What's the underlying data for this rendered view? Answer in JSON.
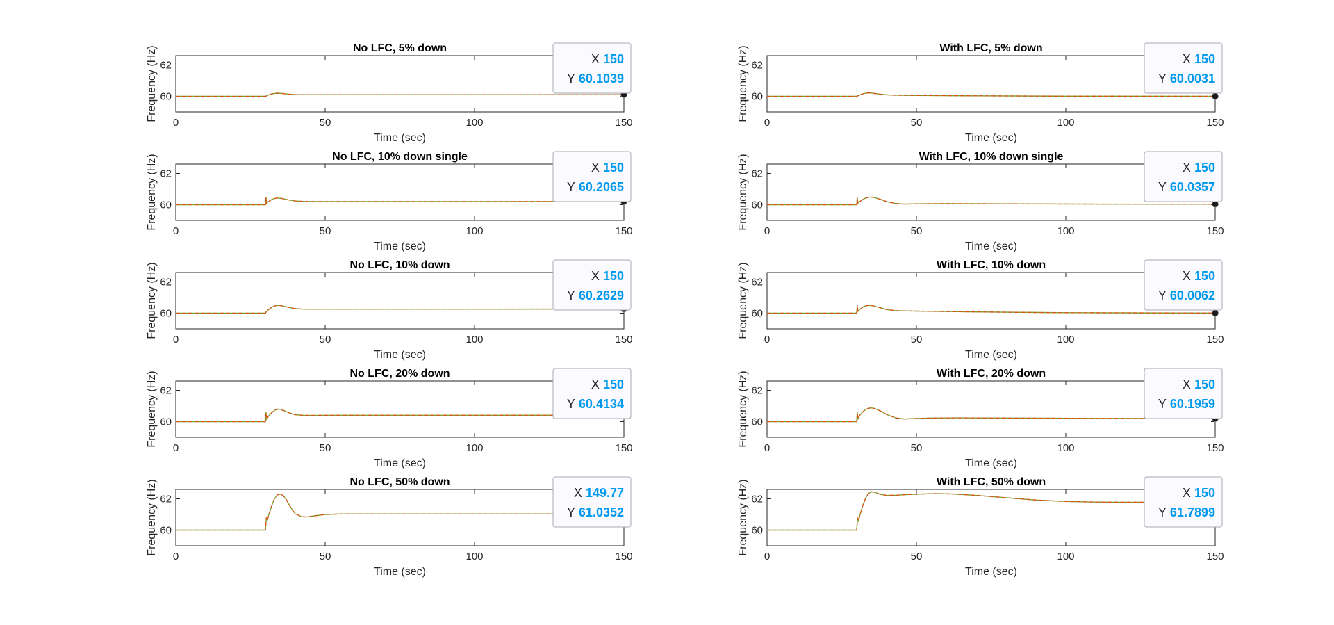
{
  "chart_data": [
    {
      "type": "line",
      "title": "No LFC, 5% down",
      "xlabel": "Time (sec)",
      "ylabel": "Frequency (Hz)",
      "xlim": [
        0,
        150
      ],
      "ylim": [
        59,
        62.6
      ],
      "xticks": [
        0,
        50,
        100,
        150
      ],
      "yticks": [
        60,
        62
      ],
      "x": [
        0,
        29.5,
        30,
        30.3,
        31,
        32,
        33,
        34,
        35,
        36,
        38,
        40,
        43,
        47,
        55,
        70,
        100,
        150
      ],
      "y": [
        60,
        60,
        60,
        60.02,
        60.08,
        60.14,
        60.18,
        60.2,
        60.19,
        60.17,
        60.13,
        60.11,
        60.1,
        60.1,
        60.1,
        60.1,
        60.1,
        60.1039
      ],
      "datatip": {
        "x_label": "X",
        "x_value": "150",
        "y_label": "Y",
        "y_value": "60.1039",
        "x": 150,
        "y": 60.1039
      }
    },
    {
      "type": "line",
      "title": "No LFC, 10% down single",
      "xlabel": "Time (sec)",
      "ylabel": "Frequency (Hz)",
      "xlim": [
        0,
        150
      ],
      "ylim": [
        59,
        62.6
      ],
      "xticks": [
        0,
        50,
        100,
        150
      ],
      "yticks": [
        60,
        62
      ],
      "x": [
        0,
        29.5,
        30,
        30.2,
        30.4,
        31,
        32,
        33,
        34,
        35,
        36,
        38,
        40,
        43,
        47,
        55,
        70,
        100,
        150
      ],
      "y": [
        60,
        60,
        60,
        60.5,
        60.1,
        60.2,
        60.32,
        60.4,
        60.43,
        60.42,
        60.38,
        60.3,
        60.24,
        60.21,
        60.2,
        60.2,
        60.2,
        60.2,
        60.2065
      ],
      "datatip": {
        "x_label": "X",
        "x_value": "150",
        "y_label": "Y",
        "y_value": "60.2065",
        "x": 150,
        "y": 60.2065
      }
    },
    {
      "type": "line",
      "title": "No LFC, 10% down",
      "xlabel": "Time (sec)",
      "ylabel": "Frequency (Hz)",
      "xlim": [
        0,
        150
      ],
      "ylim": [
        59,
        62.6
      ],
      "xticks": [
        0,
        50,
        100,
        150
      ],
      "yticks": [
        60,
        62
      ],
      "x": [
        0,
        29.5,
        30,
        30.3,
        31,
        32,
        33,
        34,
        35,
        36,
        38,
        40,
        43,
        47,
        55,
        70,
        100,
        150
      ],
      "y": [
        60,
        60,
        60,
        60.1,
        60.22,
        60.36,
        60.46,
        60.5,
        60.49,
        60.45,
        60.36,
        60.29,
        60.26,
        60.26,
        60.26,
        60.26,
        60.26,
        60.2629
      ],
      "datatip": {
        "x_label": "X",
        "x_value": "150",
        "y_label": "Y",
        "y_value": "60.2629",
        "x": 150,
        "y": 60.2629
      }
    },
    {
      "type": "line",
      "title": "No LFC, 20% down",
      "xlabel": "Time (sec)",
      "ylabel": "Frequency (Hz)",
      "xlim": [
        0,
        150
      ],
      "ylim": [
        59,
        62.6
      ],
      "xticks": [
        0,
        50,
        100,
        150
      ],
      "yticks": [
        60,
        62
      ],
      "x": [
        0,
        29.5,
        30,
        30.2,
        30.4,
        31,
        32,
        33,
        34,
        35,
        36,
        38,
        40,
        43,
        47,
        55,
        70,
        100,
        150
      ],
      "y": [
        60,
        60,
        60,
        60.6,
        60.15,
        60.35,
        60.55,
        60.72,
        60.8,
        60.79,
        60.72,
        60.56,
        60.44,
        60.4,
        60.4,
        60.41,
        60.41,
        60.41,
        60.4134
      ],
      "datatip": {
        "x_label": "X",
        "x_value": "150",
        "y_label": "Y",
        "y_value": "60.4134",
        "x": 150,
        "y": 60.4134
      }
    },
    {
      "type": "line",
      "title": "No LFC, 50% down",
      "xlabel": "Time (sec)",
      "ylabel": "Frequency (Hz)",
      "xlim": [
        0,
        150
      ],
      "ylim": [
        59,
        62.6
      ],
      "xticks": [
        0,
        50,
        100,
        150
      ],
      "yticks": [
        60,
        62
      ],
      "x": [
        0,
        29.5,
        30,
        30.3,
        30.6,
        31,
        32,
        33,
        34,
        35,
        36,
        37,
        38,
        39,
        40,
        42,
        44,
        46,
        50,
        55,
        70,
        100,
        149.77
      ],
      "y": [
        60,
        60,
        60,
        60.8,
        60.6,
        60.9,
        61.5,
        62.0,
        62.25,
        62.3,
        62.2,
        61.95,
        61.6,
        61.3,
        61.05,
        60.86,
        60.84,
        60.9,
        61.0,
        61.03,
        61.03,
        61.03,
        61.0352
      ],
      "datatip": {
        "x_label": "X",
        "x_value": "149.77",
        "y_label": "Y",
        "y_value": "61.0352",
        "x": 149.77,
        "y": 61.0352
      }
    },
    {
      "type": "line",
      "title": "With LFC, 5% down",
      "xlabel": "Time (sec)",
      "ylabel": "Frequency (Hz)",
      "xlim": [
        0,
        150
      ],
      "ylim": [
        59,
        62.6
      ],
      "xticks": [
        0,
        50,
        100,
        150
      ],
      "yticks": [
        60,
        62
      ],
      "x": [
        0,
        29.5,
        30,
        30.3,
        31,
        32,
        33,
        34,
        35,
        36,
        38,
        40,
        43,
        47,
        55,
        70,
        100,
        150
      ],
      "y": [
        60,
        60,
        60,
        60.02,
        60.08,
        60.15,
        60.2,
        60.22,
        60.21,
        60.18,
        60.13,
        60.09,
        60.07,
        60.06,
        60.05,
        60.03,
        60.01,
        60.0031
      ],
      "datatip": {
        "x_label": "X",
        "x_value": "150",
        "y_label": "Y",
        "y_value": "60.0031",
        "x": 150,
        "y": 60.0031
      }
    },
    {
      "type": "line",
      "title": "With LFC, 10% down single",
      "xlabel": "Time (sec)",
      "ylabel": "Frequency (Hz)",
      "xlim": [
        0,
        150
      ],
      "ylim": [
        59,
        62.6
      ],
      "xticks": [
        0,
        50,
        100,
        150
      ],
      "yticks": [
        60,
        62
      ],
      "x": [
        0,
        29.5,
        30,
        30.2,
        30.4,
        31,
        32,
        33,
        34,
        35,
        36,
        38,
        40,
        43,
        46,
        50,
        60,
        80,
        110,
        150
      ],
      "y": [
        60,
        60,
        60,
        60.5,
        60.1,
        60.2,
        60.33,
        60.43,
        60.48,
        60.49,
        60.46,
        60.34,
        60.2,
        60.08,
        60.04,
        60.06,
        60.07,
        60.06,
        60.04,
        60.0357
      ],
      "datatip": {
        "x_label": "X",
        "x_value": "150",
        "y_label": "Y",
        "y_value": "60.0357",
        "x": 150,
        "y": 60.0357
      }
    },
    {
      "type": "line",
      "title": "With LFC, 10% down",
      "xlabel": "Time (sec)",
      "ylabel": "Frequency (Hz)",
      "xlim": [
        0,
        150
      ],
      "ylim": [
        59,
        62.6
      ],
      "xticks": [
        0,
        50,
        100,
        150
      ],
      "yticks": [
        60,
        62
      ],
      "x": [
        0,
        29.5,
        30,
        30.2,
        30.4,
        31,
        32,
        33,
        34,
        35,
        36,
        38,
        40,
        43,
        47,
        55,
        70,
        100,
        150
      ],
      "y": [
        60,
        60,
        60,
        60.5,
        60.12,
        60.24,
        60.38,
        60.47,
        60.5,
        60.49,
        60.45,
        60.34,
        60.23,
        60.16,
        60.14,
        60.12,
        60.08,
        60.03,
        60.0062
      ],
      "datatip": {
        "x_label": "X",
        "x_value": "150",
        "y_label": "Y",
        "y_value": "60.0062",
        "x": 150,
        "y": 60.0062
      }
    },
    {
      "type": "line",
      "title": "With LFC, 20% down",
      "xlabel": "Time (sec)",
      "ylabel": "Frequency (Hz)",
      "xlim": [
        0,
        150
      ],
      "ylim": [
        59,
        62.6
      ],
      "xticks": [
        0,
        50,
        100,
        150
      ],
      "yticks": [
        60,
        62
      ],
      "x": [
        0,
        29.5,
        30,
        30.2,
        30.4,
        31,
        32,
        33,
        34,
        35,
        36,
        38,
        40,
        43,
        46,
        50,
        55,
        65,
        80,
        110,
        150
      ],
      "y": [
        60,
        60,
        60,
        60.6,
        60.18,
        60.4,
        60.62,
        60.78,
        60.86,
        60.88,
        60.84,
        60.68,
        60.46,
        60.24,
        60.17,
        60.2,
        60.23,
        60.24,
        60.23,
        60.21,
        60.1959
      ],
      "datatip": {
        "x_label": "X",
        "x_value": "150",
        "y_label": "Y",
        "y_value": "60.1959",
        "x": 150,
        "y": 60.1959
      }
    },
    {
      "type": "line",
      "title": "With LFC, 50% down",
      "xlabel": "Time (sec)",
      "ylabel": "Frequency (Hz)",
      "xlim": [
        0,
        150
      ],
      "ylim": [
        59,
        62.6
      ],
      "xticks": [
        0,
        50,
        100,
        150
      ],
      "yticks": [
        60,
        62
      ],
      "x": [
        0,
        29.5,
        30,
        30.3,
        30.6,
        31,
        32,
        33,
        34,
        35,
        36,
        37,
        38,
        40,
        43,
        47,
        52,
        57,
        62,
        70,
        80,
        90,
        100,
        110,
        120,
        135,
        150
      ],
      "y": [
        60,
        60,
        60,
        60.8,
        60.6,
        60.9,
        61.55,
        62.05,
        62.35,
        62.45,
        62.43,
        62.35,
        62.28,
        62.22,
        62.23,
        62.27,
        62.31,
        62.33,
        62.31,
        62.22,
        62.07,
        61.92,
        61.83,
        61.79,
        61.78,
        61.78,
        61.7899
      ],
      "datatip": {
        "x_label": "X",
        "x_value": "150",
        "y_label": "Y",
        "y_value": "61.7899",
        "x": 150,
        "y": 61.7899
      }
    }
  ],
  "colors": {
    "series_main": "#d95319",
    "series_secondary": "#77ac30",
    "datatip_value": "#0099ee",
    "datatip_label": "#262626",
    "datatip_bg": "#fafaff",
    "datatip_border": "#a9a9b2",
    "axes": "#262626",
    "marker": "#1a1a1a"
  }
}
